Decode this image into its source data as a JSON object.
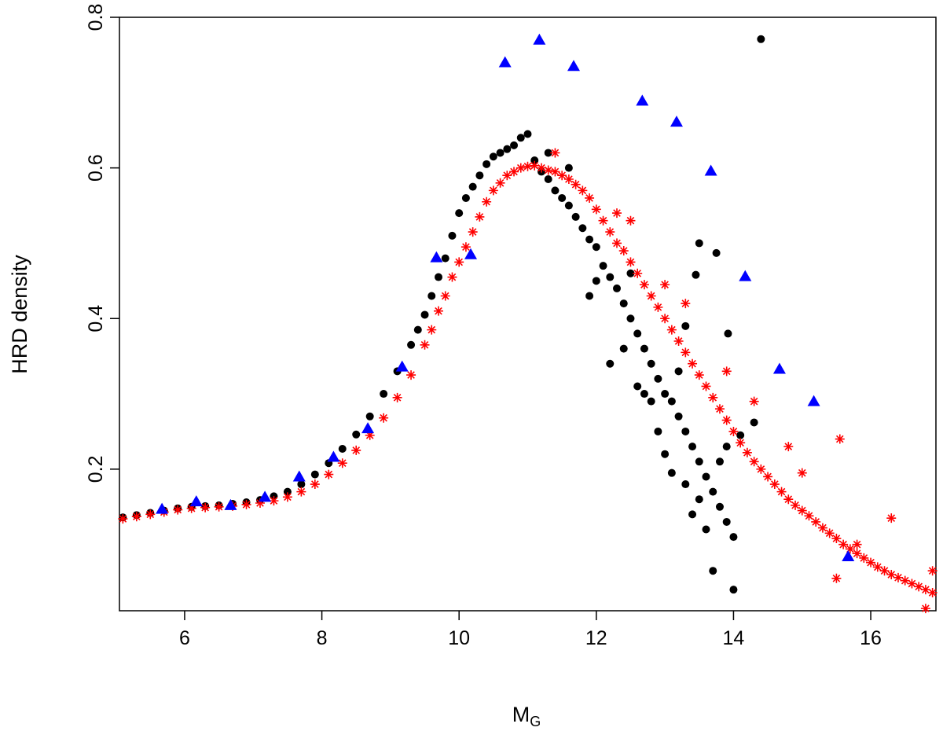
{
  "chart_data": {
    "type": "scatter",
    "title": "",
    "xlabel": "M",
    "xlabel_subscript": "G",
    "ylabel": "HRD density",
    "xlim": [
      5.05,
      16.95
    ],
    "ylim": [
      0.012,
      0.8
    ],
    "x_ticks": [
      6,
      8,
      10,
      12,
      14,
      16
    ],
    "y_ticks": [
      0.2,
      0.4,
      0.6,
      0.8
    ],
    "grid": false,
    "legend": "none",
    "series": [
      {
        "marker": "circle",
        "color": "#000000",
        "points": [
          [
            5.1,
            0.136
          ],
          [
            5.3,
            0.139
          ],
          [
            5.5,
            0.142
          ],
          [
            5.7,
            0.145
          ],
          [
            5.9,
            0.148
          ],
          [
            6.1,
            0.15
          ],
          [
            6.3,
            0.151
          ],
          [
            6.5,
            0.152
          ],
          [
            6.7,
            0.154
          ],
          [
            6.9,
            0.156
          ],
          [
            7.1,
            0.159
          ],
          [
            7.3,
            0.164
          ],
          [
            7.5,
            0.17
          ],
          [
            7.7,
            0.18
          ],
          [
            7.9,
            0.193
          ],
          [
            8.1,
            0.208
          ],
          [
            8.3,
            0.227
          ],
          [
            8.5,
            0.246
          ],
          [
            8.7,
            0.27
          ],
          [
            8.9,
            0.3
          ],
          [
            9.1,
            0.33
          ],
          [
            9.3,
            0.365
          ],
          [
            9.4,
            0.385
          ],
          [
            9.5,
            0.405
          ],
          [
            9.6,
            0.43
          ],
          [
            9.7,
            0.455
          ],
          [
            9.8,
            0.48
          ],
          [
            9.9,
            0.51
          ],
          [
            10.0,
            0.54
          ],
          [
            10.1,
            0.56
          ],
          [
            10.2,
            0.575
          ],
          [
            10.3,
            0.59
          ],
          [
            10.4,
            0.605
          ],
          [
            10.5,
            0.615
          ],
          [
            10.6,
            0.62
          ],
          [
            10.7,
            0.625
          ],
          [
            10.8,
            0.63
          ],
          [
            10.9,
            0.64
          ],
          [
            11.0,
            0.645
          ],
          [
            11.1,
            0.61
          ],
          [
            11.2,
            0.595
          ],
          [
            11.3,
            0.585
          ],
          [
            11.4,
            0.57
          ],
          [
            11.5,
            0.56
          ],
          [
            11.6,
            0.55
          ],
          [
            11.7,
            0.535
          ],
          [
            11.8,
            0.52
          ],
          [
            11.9,
            0.505
          ],
          [
            12.0,
            0.495
          ],
          [
            12.1,
            0.47
          ],
          [
            12.2,
            0.455
          ],
          [
            12.3,
            0.44
          ],
          [
            12.4,
            0.42
          ],
          [
            12.5,
            0.4
          ],
          [
            12.6,
            0.38
          ],
          [
            12.7,
            0.36
          ],
          [
            12.8,
            0.34
          ],
          [
            12.9,
            0.32
          ],
          [
            13.0,
            0.3
          ],
          [
            13.1,
            0.29
          ],
          [
            13.2,
            0.27
          ],
          [
            13.3,
            0.25
          ],
          [
            13.4,
            0.23
          ],
          [
            13.5,
            0.21
          ],
          [
            13.6,
            0.19
          ],
          [
            13.7,
            0.17
          ],
          [
            13.8,
            0.15
          ],
          [
            13.9,
            0.13
          ],
          [
            14.0,
            0.11
          ],
          [
            12.2,
            0.34
          ],
          [
            12.4,
            0.36
          ],
          [
            12.6,
            0.31
          ],
          [
            12.8,
            0.29
          ],
          [
            13.0,
            0.22
          ],
          [
            13.1,
            0.195
          ],
          [
            13.3,
            0.18
          ],
          [
            13.4,
            0.14
          ],
          [
            13.5,
            0.16
          ],
          [
            13.7,
            0.065
          ],
          [
            13.8,
            0.21
          ],
          [
            13.9,
            0.23
          ],
          [
            14.0,
            0.04
          ],
          [
            14.1,
            0.245
          ],
          [
            14.3,
            0.262
          ],
          [
            13.45,
            0.458
          ],
          [
            13.5,
            0.5
          ],
          [
            13.75,
            0.487
          ],
          [
            13.92,
            0.38
          ],
          [
            14.4,
            0.771
          ],
          [
            12.0,
            0.45
          ],
          [
            11.9,
            0.43
          ],
          [
            11.6,
            0.6
          ],
          [
            11.3,
            0.62
          ],
          [
            12.5,
            0.46
          ],
          [
            12.9,
            0.25
          ],
          [
            13.2,
            0.33
          ],
          [
            12.7,
            0.3
          ],
          [
            13.6,
            0.12
          ],
          [
            13.3,
            0.39
          ]
        ]
      },
      {
        "marker": "asterisk",
        "color": "#ff0000",
        "points": [
          [
            5.1,
            0.134
          ],
          [
            5.3,
            0.137
          ],
          [
            5.5,
            0.14
          ],
          [
            5.7,
            0.143
          ],
          [
            5.9,
            0.146
          ],
          [
            6.1,
            0.148
          ],
          [
            6.3,
            0.149
          ],
          [
            6.5,
            0.15
          ],
          [
            6.7,
            0.151
          ],
          [
            6.9,
            0.153
          ],
          [
            7.1,
            0.155
          ],
          [
            7.3,
            0.158
          ],
          [
            7.5,
            0.163
          ],
          [
            7.7,
            0.17
          ],
          [
            7.9,
            0.18
          ],
          [
            8.1,
            0.193
          ],
          [
            8.3,
            0.208
          ],
          [
            8.5,
            0.225
          ],
          [
            8.7,
            0.245
          ],
          [
            8.9,
            0.268
          ],
          [
            9.1,
            0.295
          ],
          [
            9.3,
            0.325
          ],
          [
            9.5,
            0.365
          ],
          [
            9.6,
            0.385
          ],
          [
            9.7,
            0.41
          ],
          [
            9.8,
            0.43
          ],
          [
            9.9,
            0.455
          ],
          [
            10.0,
            0.475
          ],
          [
            10.1,
            0.495
          ],
          [
            10.2,
            0.515
          ],
          [
            10.3,
            0.535
          ],
          [
            10.4,
            0.555
          ],
          [
            10.5,
            0.57
          ],
          [
            10.6,
            0.58
          ],
          [
            10.7,
            0.59
          ],
          [
            10.8,
            0.595
          ],
          [
            10.9,
            0.6
          ],
          [
            11.0,
            0.602
          ],
          [
            11.1,
            0.603
          ],
          [
            11.2,
            0.6
          ],
          [
            11.3,
            0.597
          ],
          [
            11.4,
            0.595
          ],
          [
            11.5,
            0.59
          ],
          [
            11.6,
            0.585
          ],
          [
            11.7,
            0.578
          ],
          [
            11.8,
            0.57
          ],
          [
            11.9,
            0.56
          ],
          [
            12.0,
            0.545
          ],
          [
            12.1,
            0.53
          ],
          [
            12.2,
            0.515
          ],
          [
            12.3,
            0.5
          ],
          [
            12.4,
            0.49
          ],
          [
            12.5,
            0.475
          ],
          [
            12.6,
            0.46
          ],
          [
            12.7,
            0.445
          ],
          [
            12.8,
            0.43
          ],
          [
            12.9,
            0.415
          ],
          [
            13.0,
            0.4
          ],
          [
            13.1,
            0.385
          ],
          [
            13.2,
            0.37
          ],
          [
            13.3,
            0.355
          ],
          [
            13.4,
            0.34
          ],
          [
            13.5,
            0.325
          ],
          [
            13.6,
            0.31
          ],
          [
            13.7,
            0.295
          ],
          [
            13.8,
            0.28
          ],
          [
            13.9,
            0.265
          ],
          [
            14.0,
            0.25
          ],
          [
            14.1,
            0.235
          ],
          [
            14.2,
            0.222
          ],
          [
            14.3,
            0.21
          ],
          [
            14.4,
            0.2
          ],
          [
            14.5,
            0.19
          ],
          [
            14.6,
            0.18
          ],
          [
            14.7,
            0.17
          ],
          [
            14.8,
            0.16
          ],
          [
            14.9,
            0.152
          ],
          [
            15.0,
            0.145
          ],
          [
            15.1,
            0.138
          ],
          [
            15.2,
            0.13
          ],
          [
            15.3,
            0.122
          ],
          [
            15.4,
            0.115
          ],
          [
            15.5,
            0.108
          ],
          [
            15.6,
            0.1
          ],
          [
            15.7,
            0.094
          ],
          [
            15.8,
            0.088
          ],
          [
            15.9,
            0.082
          ],
          [
            16.0,
            0.076
          ],
          [
            16.1,
            0.07
          ],
          [
            16.2,
            0.065
          ],
          [
            16.3,
            0.06
          ],
          [
            16.4,
            0.056
          ],
          [
            16.5,
            0.052
          ],
          [
            16.6,
            0.048
          ],
          [
            16.7,
            0.044
          ],
          [
            16.8,
            0.04
          ],
          [
            16.9,
            0.036
          ],
          [
            11.4,
            0.62
          ],
          [
            12.3,
            0.54
          ],
          [
            13.0,
            0.445
          ],
          [
            13.9,
            0.33
          ],
          [
            14.3,
            0.29
          ],
          [
            15.55,
            0.24
          ],
          [
            16.3,
            0.135
          ],
          [
            15.8,
            0.1
          ],
          [
            15.5,
            0.055
          ],
          [
            16.8,
            0.015
          ],
          [
            16.9,
            0.065
          ],
          [
            14.8,
            0.23
          ],
          [
            15.0,
            0.195
          ],
          [
            12.5,
            0.53
          ],
          [
            13.3,
            0.42
          ]
        ]
      },
      {
        "marker": "triangle",
        "color": "#0000ff",
        "points": [
          [
            5.67,
            0.147
          ],
          [
            6.17,
            0.157
          ],
          [
            6.67,
            0.152
          ],
          [
            7.17,
            0.163
          ],
          [
            7.67,
            0.19
          ],
          [
            8.17,
            0.216
          ],
          [
            8.67,
            0.254
          ],
          [
            9.17,
            0.336
          ],
          [
            9.67,
            0.481
          ],
          [
            10.17,
            0.485
          ],
          [
            10.67,
            0.74
          ],
          [
            11.17,
            0.77
          ],
          [
            11.67,
            0.735
          ],
          [
            12.67,
            0.689
          ],
          [
            13.17,
            0.661
          ],
          [
            13.67,
            0.596
          ],
          [
            14.17,
            0.456
          ],
          [
            14.67,
            0.333
          ],
          [
            15.17,
            0.29
          ],
          [
            15.67,
            0.084
          ]
        ]
      }
    ]
  }
}
